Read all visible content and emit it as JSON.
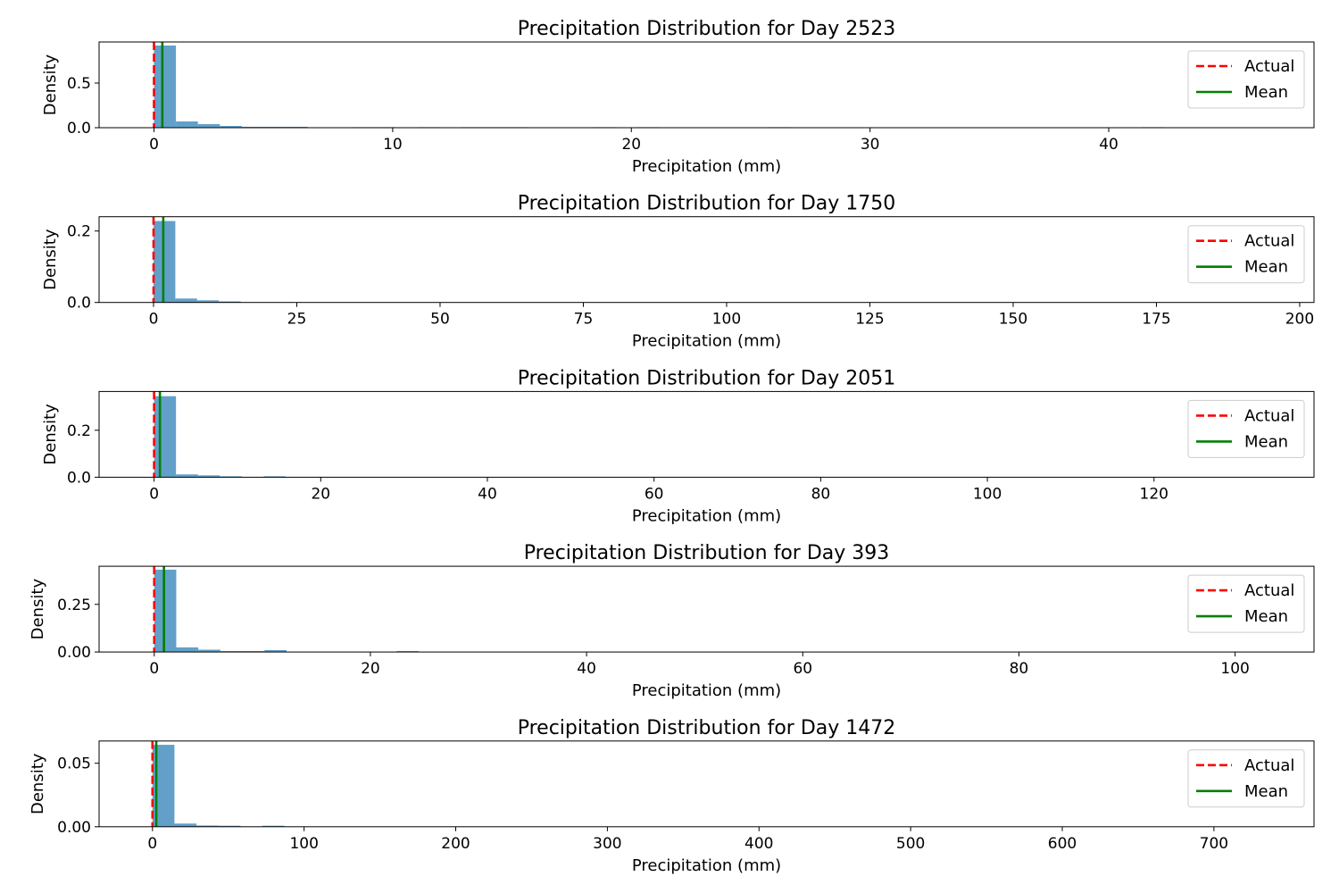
{
  "colors": {
    "bars": "#1f77b4",
    "actual_line": "#ff0000",
    "mean_line": "#008000",
    "axes": "#000000",
    "legend_border": "#cccccc"
  },
  "chart_data": [
    {
      "type": "histogram",
      "title": "Precipitation Distribution for Day 2523",
      "xlabel": "Precipitation (mm)",
      "ylabel": "Density",
      "xlim": [
        -2.3,
        48.6
      ],
      "ylim": [
        0,
        0.96
      ],
      "xticks": [
        0,
        10,
        20,
        30,
        40
      ],
      "yticks": [
        0.0,
        0.5
      ],
      "ytick_labels": [
        "0.0",
        "0.5"
      ],
      "bin_width": 0.92,
      "bins": [
        {
          "x": 0.0,
          "density": 0.92
        },
        {
          "x": 0.92,
          "density": 0.07
        },
        {
          "x": 1.84,
          "density": 0.04
        },
        {
          "x": 2.76,
          "density": 0.02
        },
        {
          "x": 3.68,
          "density": 0.01
        },
        {
          "x": 4.6,
          "density": 0.01
        },
        {
          "x": 5.52,
          "density": 0.01
        },
        {
          "x": 8.28,
          "density": 0.006
        },
        {
          "x": 9.2,
          "density": 0.006
        },
        {
          "x": 11.04,
          "density": 0.006
        },
        {
          "x": 12.88,
          "density": 0.006
        },
        {
          "x": 13.8,
          "density": 0.006
        },
        {
          "x": 14.72,
          "density": 0.006
        },
        {
          "x": 18.4,
          "density": 0.006
        },
        {
          "x": 20.24,
          "density": 0.006
        },
        {
          "x": 25.76,
          "density": 0.006
        },
        {
          "x": 41.4,
          "density": 0.006
        }
      ],
      "actual": 0.0,
      "mean": 0.35,
      "legend": [
        "Actual",
        "Mean"
      ],
      "legend_position": "upper right",
      "grid": false
    },
    {
      "type": "histogram",
      "title": "Precipitation Distribution for Day 1750",
      "xlabel": "Precipitation (mm)",
      "ylabel": "Density",
      "xlim": [
        -9.5,
        202.5
      ],
      "ylim": [
        0,
        0.24
      ],
      "xticks": [
        0,
        25,
        50,
        75,
        100,
        125,
        150,
        175,
        200
      ],
      "yticks": [
        0.0,
        0.2
      ],
      "ytick_labels": [
        "0.0",
        "0.2"
      ],
      "bin_width": 3.8,
      "bins": [
        {
          "x": 0.0,
          "density": 0.228
        },
        {
          "x": 3.8,
          "density": 0.011
        },
        {
          "x": 7.6,
          "density": 0.006
        },
        {
          "x": 11.4,
          "density": 0.003
        }
      ],
      "actual": 0.0,
      "mean": 1.7,
      "legend": [
        "Actual",
        "Mean"
      ],
      "legend_position": "upper right",
      "grid": false
    },
    {
      "type": "histogram",
      "title": "Precipitation Distribution for Day 2051",
      "xlabel": "Precipitation (mm)",
      "ylabel": "Density",
      "xlim": [
        -6.6,
        139.2
      ],
      "ylim": [
        0,
        0.365
      ],
      "xticks": [
        0,
        20,
        40,
        60,
        80,
        100,
        120
      ],
      "yticks": [
        0.0,
        0.2
      ],
      "ytick_labels": [
        "0.0",
        "0.2"
      ],
      "bin_width": 2.63,
      "bins": [
        {
          "x": 0.0,
          "density": 0.345
        },
        {
          "x": 2.63,
          "density": 0.012
        },
        {
          "x": 5.26,
          "density": 0.008
        },
        {
          "x": 7.89,
          "density": 0.004
        },
        {
          "x": 13.15,
          "density": 0.004
        }
      ],
      "actual": 0.0,
      "mean": 0.7,
      "legend": [
        "Actual",
        "Mean"
      ],
      "legend_position": "upper right",
      "grid": false
    },
    {
      "type": "histogram",
      "title": "Precipitation Distribution for Day 393",
      "xlabel": "Precipitation (mm)",
      "ylabel": "Density",
      "xlim": [
        -5.1,
        107.3
      ],
      "ylim": [
        0,
        0.45
      ],
      "xticks": [
        0,
        20,
        40,
        60,
        80,
        100
      ],
      "yticks": [
        0.0,
        0.25
      ],
      "ytick_labels": [
        "0.00",
        "0.25"
      ],
      "bin_width": 2.04,
      "bins": [
        {
          "x": 0.0,
          "density": 0.432
        },
        {
          "x": 2.04,
          "density": 0.024
        },
        {
          "x": 4.08,
          "density": 0.012
        },
        {
          "x": 6.12,
          "density": 0.005
        },
        {
          "x": 8.16,
          "density": 0.005
        },
        {
          "x": 10.2,
          "density": 0.01
        },
        {
          "x": 22.44,
          "density": 0.005
        }
      ],
      "actual": 0.0,
      "mean": 0.9,
      "legend": [
        "Actual",
        "Mean"
      ],
      "legend_position": "upper right",
      "grid": false
    },
    {
      "type": "histogram",
      "title": "Precipitation Distribution for Day 1472",
      "xlabel": "Precipitation (mm)",
      "ylabel": "Density",
      "xlim": [
        -35.2,
        766.0
      ],
      "ylim": [
        0,
        0.0675
      ],
      "xticks": [
        0,
        100,
        200,
        300,
        400,
        500,
        600,
        700
      ],
      "yticks": [
        0.0,
        0.05
      ],
      "ytick_labels": [
        "0.00",
        "0.05"
      ],
      "bin_width": 14.5,
      "bins": [
        {
          "x": 0.0,
          "density": 0.0645
        },
        {
          "x": 14.5,
          "density": 0.0025
        },
        {
          "x": 29.0,
          "density": 0.001
        },
        {
          "x": 43.5,
          "density": 0.0008
        },
        {
          "x": 72.5,
          "density": 0.0008
        }
      ],
      "actual": 0.0,
      "mean": 2.5,
      "legend": [
        "Actual",
        "Mean"
      ],
      "legend_position": "upper right",
      "grid": false
    }
  ]
}
